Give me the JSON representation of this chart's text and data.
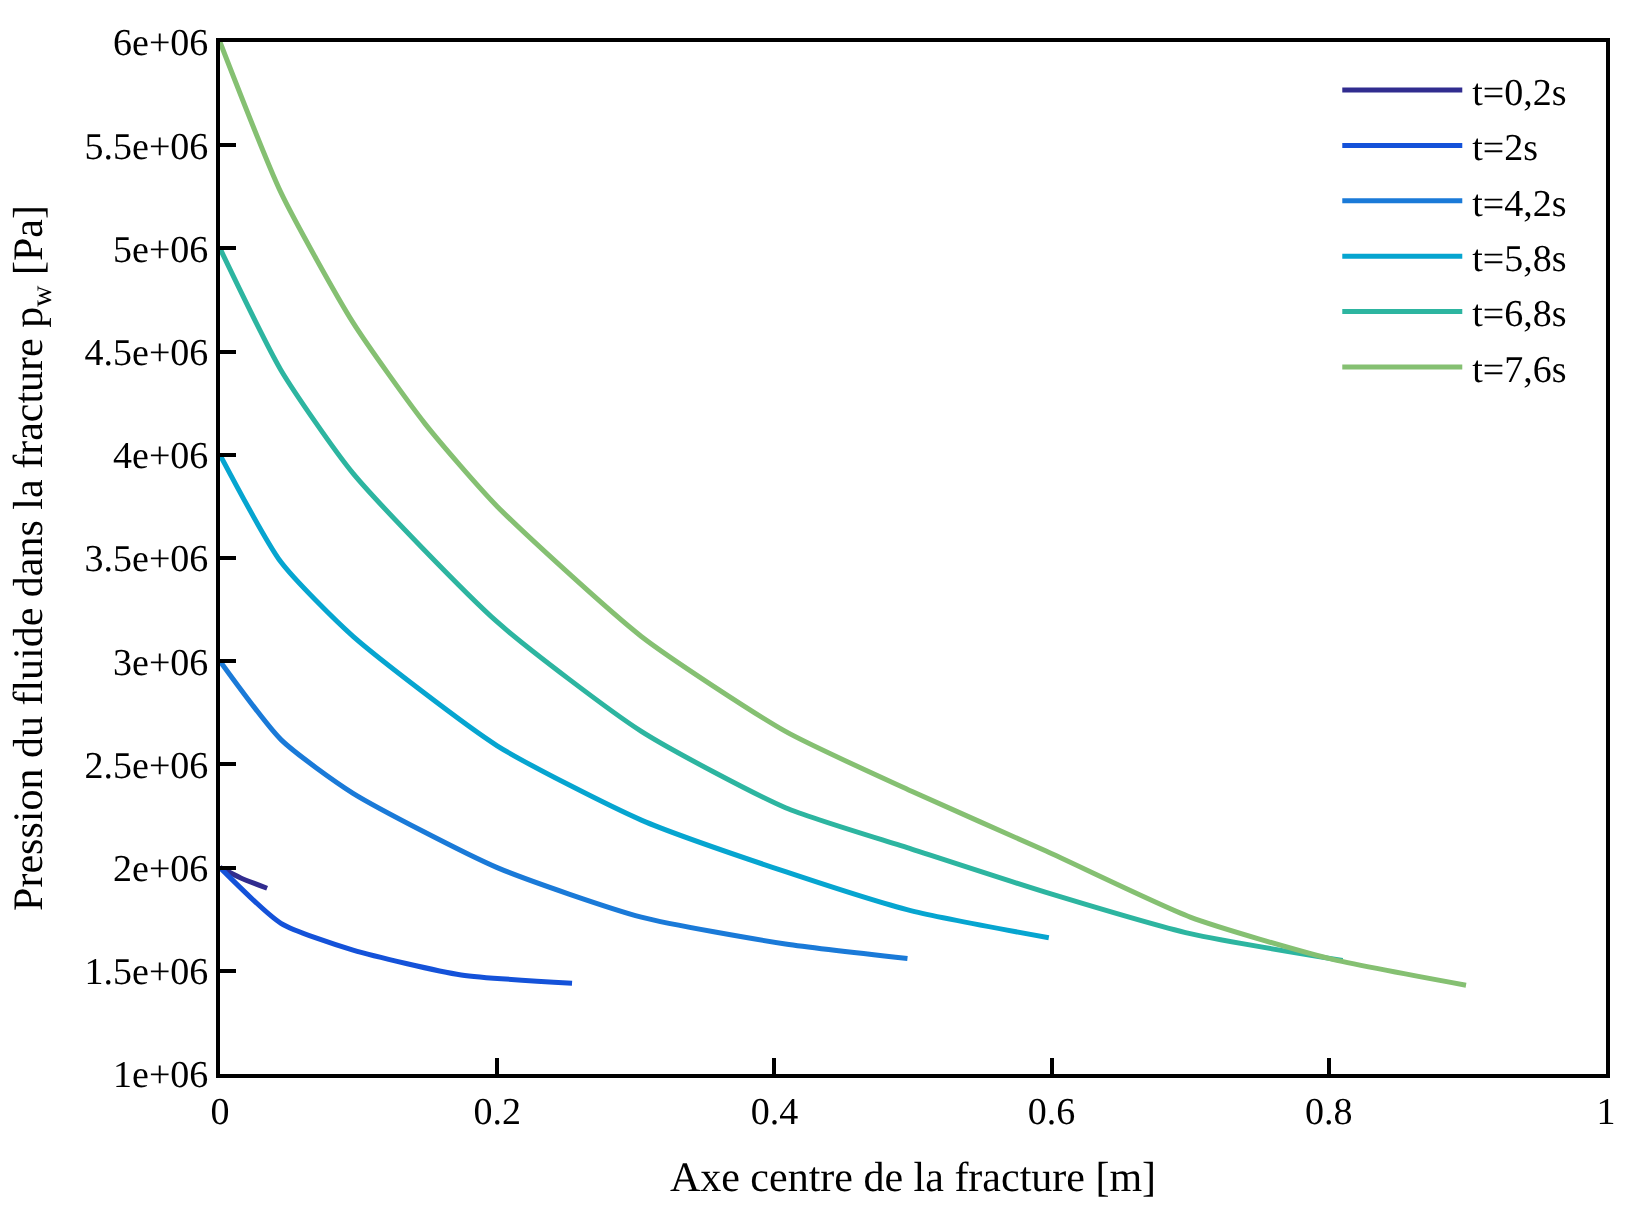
{
  "chart_data": {
    "type": "line",
    "xlabel": "Axe centre de la fracture [m]",
    "ylabel": "Pression du fluide dans la fracture p$_{w}$ [Pa]",
    "xlim": [
      0,
      1
    ],
    "xticks": [
      0,
      0.2,
      0.4,
      0.6,
      0.8,
      1
    ],
    "ylim": [
      1000000,
      6000000
    ],
    "yticks": [
      {
        "value": 1000000,
        "label": "1e+06"
      },
      {
        "value": 1500000,
        "label": "1.5e+06"
      },
      {
        "value": 2000000,
        "label": "2e+06"
      },
      {
        "value": 2500000,
        "label": "2.5e+06"
      },
      {
        "value": 3000000,
        "label": "3e+06"
      },
      {
        "value": 3500000,
        "label": "3.5e+06"
      },
      {
        "value": 4000000,
        "label": "4e+06"
      },
      {
        "value": 4500000,
        "label": "4.5e+06"
      },
      {
        "value": 5000000,
        "label": "5e+06"
      },
      {
        "value": 5500000,
        "label": "5.5e+06"
      },
      {
        "value": 6000000,
        "label": "6e+06"
      }
    ],
    "legend": "top right",
    "marker": "none",
    "line_style": "solid",
    "series": [
      {
        "name": "t=0,2s",
        "color": "#312c8f",
        "x": [
          0,
          0.015,
          0.034
        ],
        "values": [
          2000000,
          1950000,
          1900000
        ]
      },
      {
        "name": "t=2s",
        "color": "#1452d9",
        "x": [
          0,
          0.044,
          0.096,
          0.174,
          0.254
        ],
        "values": [
          2000000,
          1730000,
          1600000,
          1480000,
          1440000
        ]
      },
      {
        "name": "t=4,2s",
        "color": "#1a7ad8",
        "x": [
          0,
          0.044,
          0.096,
          0.2,
          0.304,
          0.408,
          0.496
        ],
        "values": [
          3000000,
          2620000,
          2360000,
          2000000,
          1760000,
          1630000,
          1560000
        ]
      },
      {
        "name": "t=5,8s",
        "color": "#06a5d0",
        "x": [
          0,
          0.044,
          0.096,
          0.2,
          0.304,
          0.408,
          0.499,
          0.598
        ],
        "values": [
          4000000,
          3480000,
          3120000,
          2590000,
          2230000,
          1980000,
          1790000,
          1660000
        ]
      },
      {
        "name": "t=6,8s",
        "color": "#2db5a0",
        "x": [
          0,
          0.044,
          0.096,
          0.2,
          0.304,
          0.408,
          0.499,
          0.596,
          0.7,
          0.81
        ],
        "values": [
          5000000,
          4410000,
          3910000,
          3190000,
          2660000,
          2290000,
          2090000,
          1880000,
          1680000,
          1550000
        ]
      },
      {
        "name": "t=7,6s",
        "color": "#85c072",
        "x": [
          0,
          0.044,
          0.096,
          0.148,
          0.2,
          0.304,
          0.408,
          0.499,
          0.596,
          0.7,
          0.8,
          0.899
        ],
        "values": [
          6000000,
          5270000,
          4640000,
          4150000,
          3750000,
          3120000,
          2660000,
          2370000,
          2080000,
          1760000,
          1560000,
          1430000
        ]
      }
    ]
  }
}
